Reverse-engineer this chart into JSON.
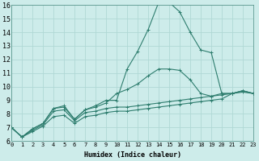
{
  "xlabel": "Humidex (Indice chaleur)",
  "xlim": [
    0,
    23
  ],
  "ylim": [
    6,
    16
  ],
  "xticks": [
    0,
    1,
    2,
    3,
    4,
    5,
    6,
    7,
    8,
    9,
    10,
    11,
    12,
    13,
    14,
    15,
    16,
    17,
    18,
    19,
    20,
    21,
    22,
    23
  ],
  "yticks": [
    6,
    7,
    8,
    9,
    10,
    11,
    12,
    13,
    14,
    15,
    16
  ],
  "background_color": "#cdecea",
  "grid_color": "#b0d8d5",
  "line_color": "#2e7d6e",
  "lines": [
    {
      "x": [
        0,
        1,
        2,
        3,
        4,
        5,
        6,
        7,
        8,
        9,
        10,
        11,
        12,
        13,
        14,
        15,
        16,
        17,
        18,
        19,
        20,
        21,
        22,
        23
      ],
      "y": [
        7.0,
        6.3,
        6.7,
        7.1,
        7.8,
        7.9,
        7.3,
        7.8,
        7.9,
        8.1,
        8.2,
        8.2,
        8.3,
        8.4,
        8.5,
        8.6,
        8.7,
        8.8,
        8.9,
        9.0,
        9.1,
        9.5,
        9.6,
        9.5
      ]
    },
    {
      "x": [
        0,
        1,
        2,
        3,
        4,
        5,
        6,
        7,
        8,
        9,
        10,
        11,
        12,
        13,
        14,
        15,
        16,
        17,
        18,
        19,
        20,
        21,
        22,
        23
      ],
      "y": [
        7.0,
        6.3,
        6.8,
        7.2,
        8.2,
        8.3,
        7.5,
        8.1,
        8.2,
        8.4,
        8.5,
        8.5,
        8.6,
        8.7,
        8.8,
        8.9,
        9.0,
        9.1,
        9.2,
        9.3,
        9.4,
        9.5,
        9.7,
        9.5
      ]
    },
    {
      "x": [
        0,
        1,
        2,
        3,
        4,
        5,
        6,
        7,
        8,
        9,
        10,
        11,
        12,
        13,
        14,
        15,
        16,
        17,
        18,
        19,
        20,
        21,
        22,
        23
      ],
      "y": [
        7.0,
        6.3,
        6.9,
        7.3,
        8.4,
        8.5,
        7.6,
        8.3,
        8.5,
        8.8,
        9.5,
        9.8,
        10.2,
        10.8,
        11.3,
        11.3,
        11.2,
        10.5,
        9.5,
        9.3,
        9.5,
        9.5,
        9.7,
        9.5
      ]
    },
    {
      "x": [
        0,
        1,
        2,
        3,
        4,
        5,
        6,
        7,
        8,
        9,
        10,
        11,
        12,
        13,
        14,
        15,
        16,
        17,
        18,
        19,
        20,
        21,
        22,
        23
      ],
      "y": [
        7.0,
        6.3,
        6.9,
        7.3,
        8.4,
        8.6,
        7.6,
        8.3,
        8.6,
        9.0,
        9.0,
        11.3,
        12.6,
        14.2,
        16.2,
        16.2,
        15.5,
        14.0,
        12.7,
        12.5,
        9.5,
        9.5,
        9.7,
        9.5
      ]
    }
  ]
}
